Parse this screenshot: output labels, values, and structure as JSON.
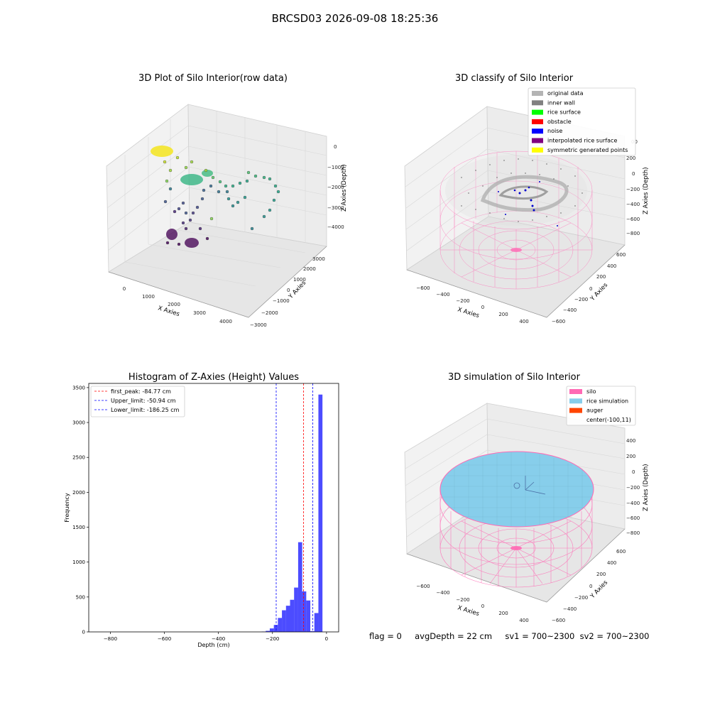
{
  "suptitle": "BRCSD03 2026-09-08 18:25:36",
  "panels": {
    "raw": {
      "title": "3D Plot of Silo Interior(row data)",
      "xlabel": "X Axies",
      "ylabel": "Y Axies",
      "zlabel": "Z Axies (Depth)",
      "x_ticks": [
        "0",
        "1000",
        "2000",
        "3000",
        "4000"
      ],
      "y_ticks": [
        "−3000",
        "−2000",
        "−1000",
        "0",
        "1000",
        "2000",
        "3000"
      ],
      "z_ticks": [
        "0",
        "−1000",
        "−2000",
        "−3000",
        "−4000"
      ]
    },
    "classify": {
      "title": "3D classify of Silo Interior",
      "xlabel": "X Axies",
      "ylabel": "Y Axies",
      "zlabel": "Z Axies (Depth)",
      "x_ticks": [
        "−600",
        "−400",
        "−200",
        "0",
        "200",
        "400"
      ],
      "y_ticks": [
        "−600",
        "−400",
        "−200",
        "0",
        "200",
        "400",
        "600"
      ],
      "z_ticks": [
        "200",
        "0",
        "−200",
        "−400",
        "−600",
        "−800"
      ],
      "z_ticks_partial": "00",
      "legend": [
        {
          "label": "original data",
          "color": "#b4b4b4"
        },
        {
          "label": "inner wall",
          "color": "#808080"
        },
        {
          "label": "rice surface",
          "color": "#00ff00"
        },
        {
          "label": "obstacle",
          "color": "#ff0000"
        },
        {
          "label": "noise",
          "color": "#0000ff"
        },
        {
          "label": "interpolated rice surface",
          "color": "#800080"
        },
        {
          "label": "symmetric generated points",
          "color": "#ffff00"
        }
      ]
    },
    "simulation": {
      "title": "3D simulation of Silo Interior",
      "xlabel": "X Axies",
      "ylabel": "Y Axies",
      "zlabel": "Z Axies (Depth)",
      "x_ticks": [
        "−600",
        "−400",
        "−200",
        "0",
        "200",
        "400"
      ],
      "y_ticks": [
        "−600",
        "−400",
        "−200",
        "0",
        "200",
        "400",
        "600"
      ],
      "z_ticks": [
        "400",
        "200",
        "0",
        "−200",
        "−400",
        "−600",
        "−800"
      ],
      "legend": [
        {
          "label": "silo",
          "color": "#ff69b4"
        },
        {
          "label": "rice simulation",
          "color": "#87ceeb"
        },
        {
          "label": "auger",
          "color": "#ff4500"
        },
        {
          "label": "center(-100,11)",
          "color": ""
        }
      ]
    }
  },
  "status": "flag = 0     avgDepth = 22 cm     sv1 = 700~2300  sv2 = 700~2300",
  "chart_data": [
    {
      "type": "bar",
      "title": "Histogram of Z-Axies (Height) Values",
      "xlabel": "Depth (cm)",
      "ylabel": "Frequency",
      "xlim": [
        -880,
        45
      ],
      "ylim": [
        0,
        3560
      ],
      "x_ticks": [
        -800,
        -600,
        -400,
        -200,
        0
      ],
      "y_ticks": [
        0,
        500,
        1000,
        1500,
        2000,
        2500,
        3000,
        3500
      ],
      "bar_color": "#0000ff",
      "bin_width": 15,
      "bins": [
        {
          "x": -240,
          "value": 5
        },
        {
          "x": -225,
          "value": 15
        },
        {
          "x": -210,
          "value": 50
        },
        {
          "x": -195,
          "value": 100
        },
        {
          "x": -180,
          "value": 200
        },
        {
          "x": -165,
          "value": 310
        },
        {
          "x": -150,
          "value": 375
        },
        {
          "x": -135,
          "value": 460
        },
        {
          "x": -120,
          "value": 635
        },
        {
          "x": -105,
          "value": 1285
        },
        {
          "x": -90,
          "value": 580
        },
        {
          "x": -75,
          "value": 450
        },
        {
          "x": -60,
          "value": 10
        },
        {
          "x": -45,
          "value": 270
        },
        {
          "x": -30,
          "value": 3400
        },
        {
          "x": -15,
          "value": 0
        }
      ],
      "vlines": [
        {
          "label": "first_peak: -84.77 cm",
          "x": -84.77,
          "color": "#ff0000"
        },
        {
          "label": "Upper_limit: -50.94 cm",
          "x": -50.94,
          "color": "#0000ff"
        },
        {
          "label": "Lower_limit: -186.25 cm",
          "x": -186.25,
          "color": "#0000ff"
        }
      ],
      "legend_position": "upper left"
    }
  ]
}
